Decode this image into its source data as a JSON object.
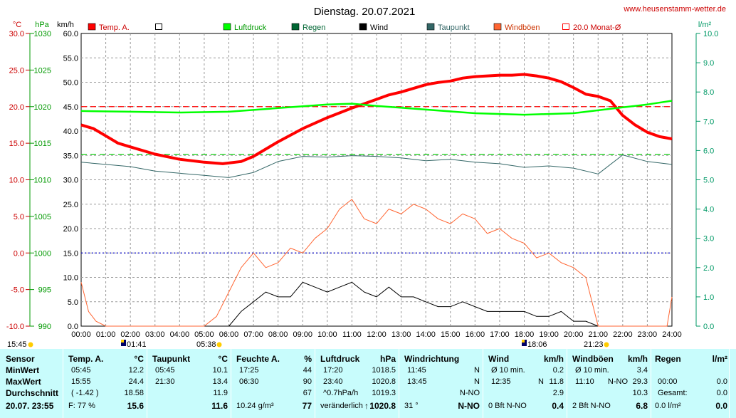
{
  "header": {
    "title": "Dienstag. 20.07.2021",
    "site": "www.heusenstamm-wetter.de",
    "unit_temp": "°C",
    "unit_press": "hPa",
    "unit_wind": "km/h",
    "unit_rain": "l/m²"
  },
  "legend": [
    {
      "label": "Temp. A.",
      "color": "#ff0000",
      "style": "filled"
    },
    {
      "label": "",
      "color": "#000000",
      "style": "empty"
    },
    {
      "label": "Luftdruck",
      "color": "#00ff00",
      "style": "filled"
    },
    {
      "label": "Regen",
      "color": "#006633",
      "style": "filled"
    },
    {
      "label": "Wind",
      "color": "#000000",
      "style": "filled"
    },
    {
      "label": "Taupunkt",
      "color": "#336666",
      "style": "filled"
    },
    {
      "label": "Windböen",
      "color": "#ff6633",
      "style": "filled"
    },
    {
      "label": "20.0 Monat-Ø",
      "color": "#ff0000",
      "style": "outline"
    }
  ],
  "chart_data": {
    "type": "line",
    "x_ticks": [
      "00:00",
      "01:00",
      "02:00",
      "03:00",
      "04:00",
      "05:00",
      "06:00",
      "07:00",
      "08:00",
      "09:00",
      "10:00",
      "11:00",
      "12:00",
      "13:00",
      "14:00",
      "15:00",
      "16:00",
      "17:00",
      "18:00",
      "19:00",
      "20:00",
      "21:00",
      "22:00",
      "23:00",
      "24:00"
    ],
    "axes": {
      "temp_ticks": [
        "30.0",
        "25.0",
        "20.0",
        "15.0",
        "10.0",
        "5.0",
        "0.0",
        "-5.0",
        "-10.0"
      ],
      "press_ticks": [
        "1030",
        "1025",
        "1020",
        "1015",
        "1010",
        "1005",
        "1000",
        "995",
        "990"
      ],
      "wind_ticks": [
        "60.0",
        "55.0",
        "50.0",
        "45.0",
        "40.0",
        "35.0",
        "30.0",
        "25.0",
        "20.0",
        "15.0",
        "10.0",
        "5.0",
        "0.0"
      ],
      "rain_ticks": [
        "10.0",
        "9.0",
        "8.0",
        "7.0",
        "6.0",
        "5.0",
        "4.0",
        "3.0",
        "2.0",
        "1.0",
        "0.0"
      ],
      "temp_range": [
        -10,
        30
      ],
      "press_range": [
        990,
        1030
      ],
      "wind_range": [
        0,
        60
      ],
      "rain_range": [
        0,
        10
      ]
    },
    "reference_lines": [
      {
        "name": "20.0 Monat-Ø",
        "axis": "temp",
        "value": 20.0,
        "color": "#ff0000"
      },
      {
        "axis": "press",
        "value": 1013.5,
        "color": "#00cc00"
      },
      {
        "axis": "temp",
        "value": 0.0,
        "color": "#0000cc"
      }
    ],
    "series": [
      {
        "name": "Temp. A.",
        "axis": "temp",
        "color": "#ff0000",
        "x": [
          0,
          0.5,
          1,
          1.5,
          2,
          3,
          4,
          5,
          5.75,
          6.5,
          7,
          8,
          9,
          10,
          11,
          12,
          12.5,
          13,
          13.5,
          14,
          14.5,
          15,
          15.5,
          16,
          16.5,
          17,
          17.5,
          18,
          18.5,
          19,
          19.5,
          20,
          20.5,
          21,
          21.5,
          22,
          22.5,
          23,
          23.5,
          24
        ],
        "y": [
          17.5,
          17.0,
          16.0,
          15.0,
          14.5,
          13.5,
          12.8,
          12.4,
          12.2,
          12.5,
          13.2,
          15.2,
          17.0,
          18.5,
          19.8,
          21.0,
          21.6,
          22.0,
          22.5,
          23.0,
          23.3,
          23.5,
          23.9,
          24.1,
          24.2,
          24.3,
          24.3,
          24.4,
          24.2,
          23.9,
          23.4,
          22.6,
          21.7,
          21.4,
          20.8,
          18.8,
          17.5,
          16.5,
          15.9,
          15.6
        ]
      },
      {
        "name": "Luftdruck",
        "axis": "press",
        "color": "#00ff00",
        "x": [
          0,
          2,
          4,
          6,
          8,
          10,
          11,
          12,
          14,
          16,
          18,
          20,
          21,
          22,
          23,
          24
        ],
        "y": [
          1019.4,
          1019.3,
          1019.2,
          1019.3,
          1019.8,
          1020.3,
          1020.4,
          1020.1,
          1019.6,
          1019.1,
          1018.9,
          1019.1,
          1019.5,
          1019.9,
          1020.3,
          1020.8
        ]
      },
      {
        "name": "Taupunkt",
        "axis": "temp",
        "color": "#336666",
        "x": [
          0,
          1,
          2,
          3,
          4,
          5,
          6,
          7,
          8,
          9,
          10,
          11,
          12,
          13,
          14,
          15,
          16,
          17,
          18,
          19,
          20,
          21,
          22,
          23,
          24
        ],
        "y": [
          12.4,
          12.1,
          11.8,
          11.2,
          10.9,
          10.6,
          10.3,
          11.0,
          12.5,
          13.2,
          13.1,
          13.3,
          13.2,
          13.0,
          12.6,
          12.8,
          12.4,
          12.2,
          11.7,
          11.9,
          11.6,
          10.8,
          13.4,
          12.5,
          12.1
        ]
      },
      {
        "name": "Wind",
        "axis": "wind",
        "color": "#000000",
        "x": [
          0,
          1,
          2,
          3,
          4,
          5,
          6,
          6.5,
          7,
          7.5,
          8,
          8.5,
          9,
          9.5,
          10,
          10.5,
          11,
          11.5,
          12,
          12.5,
          13,
          13.5,
          14,
          14.5,
          15,
          15.5,
          16,
          16.5,
          17,
          17.5,
          18,
          18.5,
          19,
          19.5,
          20,
          20.5,
          21,
          22,
          23,
          24
        ],
        "y": [
          0,
          0,
          0,
          0,
          0,
          0,
          0,
          3,
          5,
          7,
          6,
          6,
          9,
          8,
          7,
          8,
          9,
          7,
          6,
          8,
          6,
          6,
          5,
          4,
          4,
          5,
          4,
          3,
          3,
          3,
          3,
          2,
          2,
          3,
          1,
          1,
          0,
          0,
          0,
          0
        ]
      },
      {
        "name": "Windböen",
        "axis": "wind",
        "color": "#ff6633",
        "x": [
          0,
          0.3,
          0.6,
          1,
          1.5,
          2,
          3,
          4,
          5,
          5.5,
          6,
          6.5,
          7,
          7.5,
          8,
          8.5,
          9,
          9.5,
          10,
          10.5,
          11,
          11.5,
          12,
          12.5,
          13,
          13.5,
          14,
          14.5,
          15,
          15.5,
          16,
          16.5,
          17,
          17.5,
          18,
          18.5,
          19,
          19.5,
          20,
          20.5,
          21,
          22,
          23,
          23.8,
          24
        ],
        "y": [
          9,
          3,
          1,
          0,
          0,
          0,
          0,
          0,
          0,
          2,
          7,
          12,
          15,
          12,
          13,
          16,
          15,
          18,
          20,
          24,
          26,
          22,
          21,
          24,
          23,
          25,
          24,
          22,
          21,
          23,
          22,
          19,
          20,
          18,
          17,
          14,
          15,
          13,
          12,
          10,
          0,
          0,
          0,
          0,
          6
        ]
      }
    ]
  },
  "time_markers": {
    "left": "15:45",
    "sunrise_icon": "01:41",
    "sunrise": "05:38",
    "sunset_icon": "18:06",
    "sunset": "21:23"
  },
  "table": {
    "sensor": {
      "head": "Sensor",
      "rows": [
        "MinWert",
        "MaxWert",
        "Durchschnitt"
      ],
      "foot": "20.07. 23:55"
    },
    "temp": {
      "head": "Temp. A.",
      "unit": "°C",
      "rows": [
        [
          "05:45",
          "12.2"
        ],
        [
          "15:55",
          "24.4"
        ],
        [
          "( -1.42 )",
          "18.58"
        ]
      ],
      "foot_l": "F: 77 %",
      "foot_r": "15.6"
    },
    "dew": {
      "head": "Taupunkt",
      "unit": "°C",
      "rows": [
        [
          "05:45",
          "10.1"
        ],
        [
          "21:30",
          "13.4"
        ],
        [
          "",
          "11.9"
        ]
      ],
      "foot_l": "",
      "foot_r": "11.6"
    },
    "hum": {
      "head": "Feuchte A.",
      "unit": "%",
      "rows": [
        [
          "17:25",
          "44"
        ],
        [
          "06:30",
          "90"
        ],
        [
          "",
          "67"
        ]
      ],
      "foot_l": "10.24 g/m³",
      "foot_r": "77"
    },
    "press": {
      "head": "Luftdruck",
      "unit": "hPa",
      "rows": [
        [
          "17:20",
          "1018.5"
        ],
        [
          "23:40",
          "1020.8"
        ],
        [
          "^0.7hPa/h",
          "1019.3"
        ]
      ],
      "foot_l": "veränderlich",
      "foot_arrow": "↑",
      "foot_r": "1020.8"
    },
    "dir": {
      "head": "Windrichtung",
      "unit": "",
      "rows": [
        [
          "11:45",
          "N"
        ],
        [
          "13:45",
          "N"
        ],
        [
          "",
          "N-NO"
        ]
      ],
      "foot_l": "31 °",
      "foot_r": "N-NO"
    },
    "wind": {
      "head": "Wind",
      "unit": "km/h",
      "rows": [
        [
          "Ø 10 min.",
          "",
          "0.2"
        ],
        [
          "12:35",
          "N",
          "11.8"
        ],
        [
          "",
          "",
          "2.9"
        ]
      ],
      "foot_l": "0 Bft N-NO",
      "foot_r": "0.4"
    },
    "gust": {
      "head": "Windböen",
      "unit": "km/h",
      "rows": [
        [
          "Ø 10 min.",
          "",
          "3.4"
        ],
        [
          "11:10",
          "N-NO",
          "29.3"
        ],
        [
          "",
          "",
          "10.3"
        ]
      ],
      "foot_l": "2 Bft N-NO",
      "foot_r": "6.8"
    },
    "rain": {
      "head": "Regen",
      "unit": "l/m²",
      "rows": [
        [
          "",
          "",
          ""
        ],
        [
          "00:00",
          "",
          "0.0"
        ],
        [
          "Gesamt:",
          "",
          "0.0"
        ]
      ],
      "foot_l": "0.0 l/m²",
      "foot_r": "0.0"
    }
  }
}
